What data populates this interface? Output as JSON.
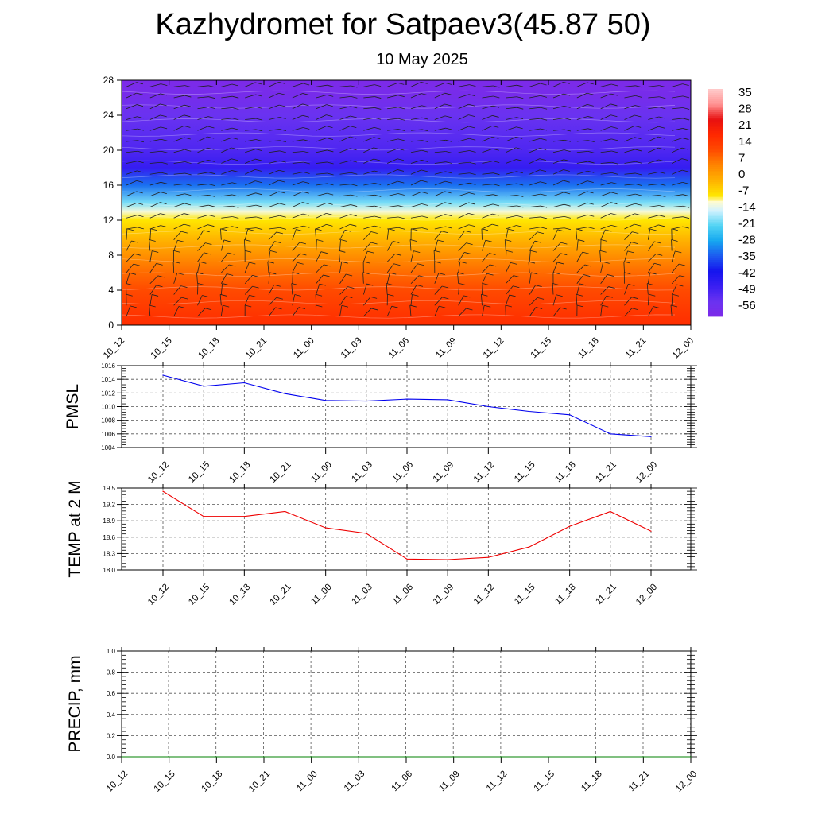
{
  "header": {
    "title": "Kazhydromet for Satpaev3(45.87 50)",
    "subtitle": "10 May 2025"
  },
  "chart_data": [
    {
      "type": "heatmap",
      "id": "temperature-height-wind",
      "x": [
        "10_12",
        "10_15",
        "10_18",
        "10_21",
        "11_00",
        "11_03",
        "11_06",
        "11_09",
        "11_12",
        "11_15",
        "11_18",
        "11_21",
        "12_00"
      ],
      "y_ticks": [
        0,
        4,
        8,
        12,
        16,
        20,
        24,
        28
      ],
      "ylim": [
        0,
        28
      ],
      "colorbar_labels": [
        "35",
        "28",
        "21",
        "14",
        "7",
        "0",
        "-7",
        "-14",
        "-21",
        "-28",
        "-35",
        "-42",
        "-49",
        "-56"
      ],
      "colorbar_range": [
        -63,
        42
      ],
      "color_stops": [
        {
          "v": -63,
          "c": "#7d2ae8"
        },
        {
          "v": -56,
          "c": "#6a32f0"
        },
        {
          "v": -49,
          "c": "#3a1ff2"
        },
        {
          "v": -42,
          "c": "#1414ee"
        },
        {
          "v": -35,
          "c": "#1c5af0"
        },
        {
          "v": -28,
          "c": "#16a8f0"
        },
        {
          "v": -21,
          "c": "#52d4f4"
        },
        {
          "v": -14,
          "c": "#d2f2ff"
        },
        {
          "v": -10,
          "c": "#fffbd0"
        },
        {
          "v": -7,
          "c": "#ffe600"
        },
        {
          "v": 0,
          "c": "#ffb000"
        },
        {
          "v": 7,
          "c": "#ff8400"
        },
        {
          "v": 14,
          "c": "#ff4a00"
        },
        {
          "v": 21,
          "c": "#ff2800"
        },
        {
          "v": 28,
          "c": "#e81010"
        },
        {
          "v": 35,
          "c": "#ff9090"
        },
        {
          "v": 42,
          "c": "#ffcccc"
        }
      ],
      "profile": [
        {
          "h": 0,
          "t": 20
        },
        {
          "h": 2,
          "t": 17
        },
        {
          "h": 4,
          "t": 14
        },
        {
          "h": 6,
          "t": 10
        },
        {
          "h": 8,
          "t": 5
        },
        {
          "h": 10,
          "t": -1
        },
        {
          "h": 12,
          "t": -7
        },
        {
          "h": 13,
          "t": -11
        },
        {
          "h": 14,
          "t": -19
        },
        {
          "h": 16,
          "t": -33
        },
        {
          "h": 18,
          "t": -48
        },
        {
          "h": 20,
          "t": -52
        },
        {
          "h": 22,
          "t": -54
        },
        {
          "h": 24,
          "t": -56
        },
        {
          "h": 26,
          "t": -60
        },
        {
          "h": 28,
          "t": -63
        }
      ]
    },
    {
      "type": "line",
      "id": "pmsl",
      "ylabel": "PMSL",
      "categories": [
        "10_12",
        "10_15",
        "10_18",
        "10_21",
        "11_00",
        "11_03",
        "11_06",
        "11_09",
        "11_12",
        "11_15",
        "11_18",
        "11_21",
        "12_00"
      ],
      "ylim": [
        1004,
        1016
      ],
      "y_ticks": [
        "1004",
        "1006",
        "1008",
        "1010",
        "1012",
        "1014",
        "1016"
      ],
      "series": [
        {
          "values": [
            1014.6,
            1013.0,
            1013.5,
            1011.9,
            1010.9,
            1010.8,
            1011.1,
            1011.0,
            1010.0,
            1009.3,
            1008.8,
            1006.0,
            1005.6
          ],
          "color": "#0000ee"
        }
      ],
      "grid": true
    },
    {
      "type": "line",
      "id": "temp2m",
      "ylabel": "TEMP at 2 M",
      "categories": [
        "10_12",
        "10_15",
        "10_18",
        "10_21",
        "11_00",
        "11_03",
        "11_06",
        "11_09",
        "11_12",
        "11_15",
        "11_18",
        "11_21",
        "12_00"
      ],
      "ylim": [
        18.0,
        19.5
      ],
      "y_ticks": [
        "18.0",
        "18.3",
        "18.6",
        "18.9",
        "19.2",
        "19.5"
      ],
      "series": [
        {
          "values": [
            19.44,
            18.98,
            18.98,
            19.07,
            18.77,
            18.67,
            18.2,
            18.19,
            18.23,
            18.42,
            18.8,
            19.07,
            18.71
          ],
          "color": "#ee0000"
        }
      ],
      "grid": true
    },
    {
      "type": "line",
      "id": "precip",
      "ylabel": "PRECIP, mm",
      "categories": [
        "10_12",
        "10_15",
        "10_18",
        "10_21",
        "11_00",
        "11_03",
        "11_06",
        "11_09",
        "11_12",
        "11_15",
        "11_18",
        "11_21",
        "12_00"
      ],
      "ylim": [
        0.0,
        1.0
      ],
      "y_ticks": [
        "0.0",
        "0.2",
        "0.4",
        "0.6",
        "0.8",
        "1.0"
      ],
      "series": [
        {
          "values": [
            0,
            0,
            0,
            0,
            0,
            0,
            0,
            0,
            0,
            0,
            0,
            0,
            0
          ],
          "color": "#008000"
        }
      ],
      "grid": true
    }
  ]
}
